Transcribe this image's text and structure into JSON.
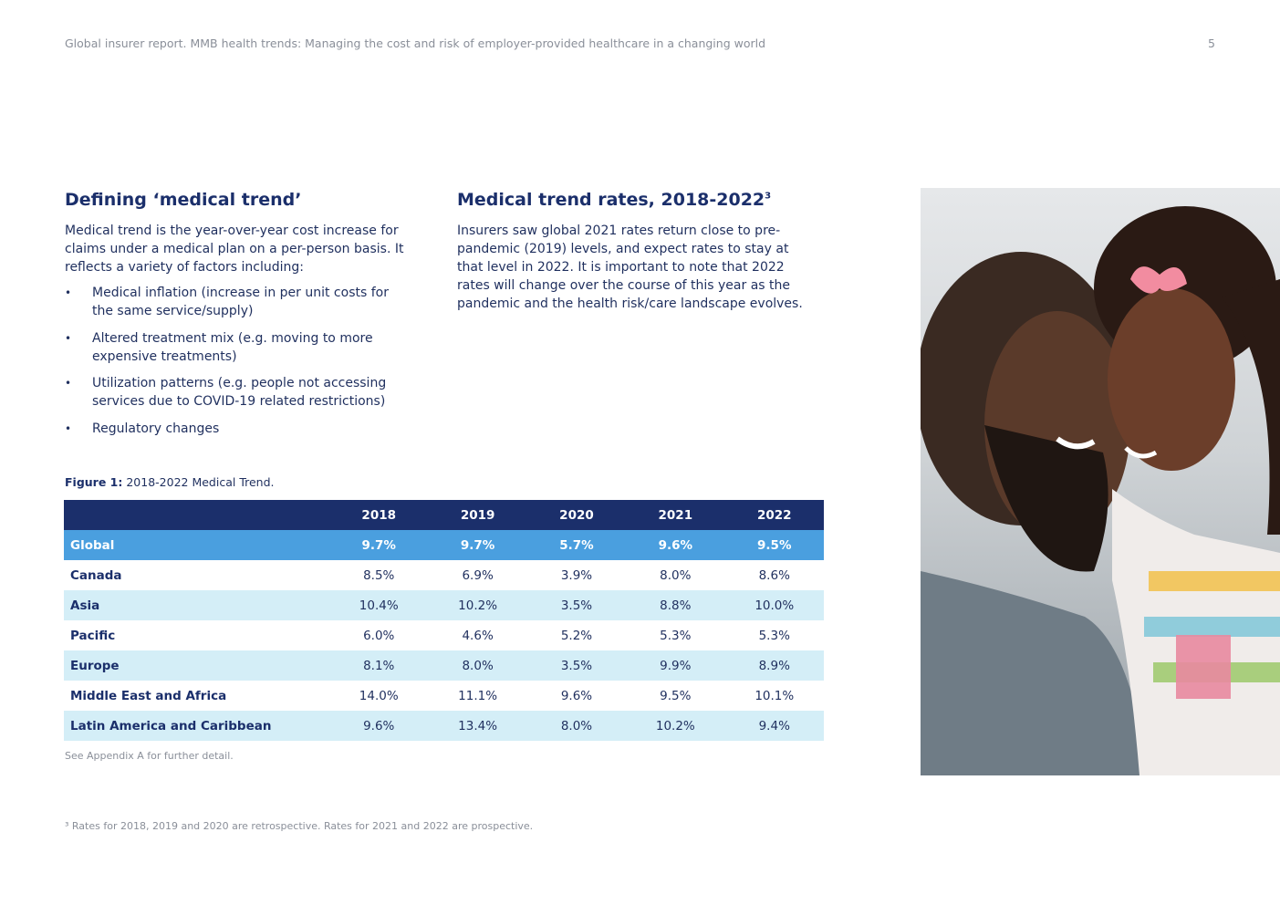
{
  "header": {
    "running_title": "Global insurer report. MMB health trends: Managing the cost and risk of employer-provided healthcare in a changing world",
    "page_number": "5"
  },
  "left_section": {
    "title": "Defining ‘medical trend’",
    "intro": "Medical trend is the year-over-year cost increase for claims under a medical plan on a per-person basis. It reflects a variety of factors including:",
    "bullet_symbol": "•",
    "bullets": [
      "Medical inflation (increase in per unit costs for the same service/supply)",
      "Altered treatment mix (e.g. moving to more expensive treatments)",
      "Utilization patterns (e.g. people not accessing services due to COVID-19 related restrictions)",
      "Regulatory changes"
    ]
  },
  "middle_section": {
    "title": "Medical trend rates, 2018-2022",
    "title_superscript": "3",
    "body": "Insurers saw global 2021 rates return close to pre-pandemic (2019) levels, and expect rates to stay at that level in 2022. It is important to note that 2022 rates will change over the course of this year as the pandemic and the health risk/care landscape evolves."
  },
  "figure": {
    "label": "Figure 1:",
    "caption": " 2018-2022 Medical Trend.",
    "note": "See Appendix A for further detail."
  },
  "table": {
    "columns": [
      "2018",
      "2019",
      "2020",
      "2021",
      "2022"
    ],
    "rows": [
      {
        "region": "Global",
        "values": [
          "9.7%",
          "9.7%",
          "5.7%",
          "9.6%",
          "9.5%"
        ]
      },
      {
        "region": "Canada",
        "values": [
          "8.5%",
          "6.9%",
          "3.9%",
          "8.0%",
          "8.6%"
        ]
      },
      {
        "region": "Asia",
        "values": [
          "10.4%",
          "10.2%",
          "3.5%",
          "8.8%",
          "10.0%"
        ]
      },
      {
        "region": "Pacific",
        "values": [
          "6.0%",
          "4.6%",
          "5.2%",
          "5.3%",
          "5.3%"
        ]
      },
      {
        "region": "Europe",
        "values": [
          "8.1%",
          "8.0%",
          "3.5%",
          "9.9%",
          "8.9%"
        ]
      },
      {
        "region": "Middle East and Africa",
        "values": [
          "14.0%",
          "11.1%",
          "9.6%",
          "9.5%",
          "10.1%"
        ]
      },
      {
        "region": "Latin America and Caribbean",
        "values": [
          "9.6%",
          "13.4%",
          "8.0%",
          "10.2%",
          "9.4%"
        ]
      }
    ]
  },
  "footnote": "³ Rates for 2018, 2019 and 2020 are retrospective. Rates for 2021 and 2022 are prospective.",
  "colors": {
    "navy": "#1b2f6b",
    "highlight_blue": "#4a9fdf",
    "light_row": "#d4eef7",
    "muted_text": "#8a8f99"
  }
}
